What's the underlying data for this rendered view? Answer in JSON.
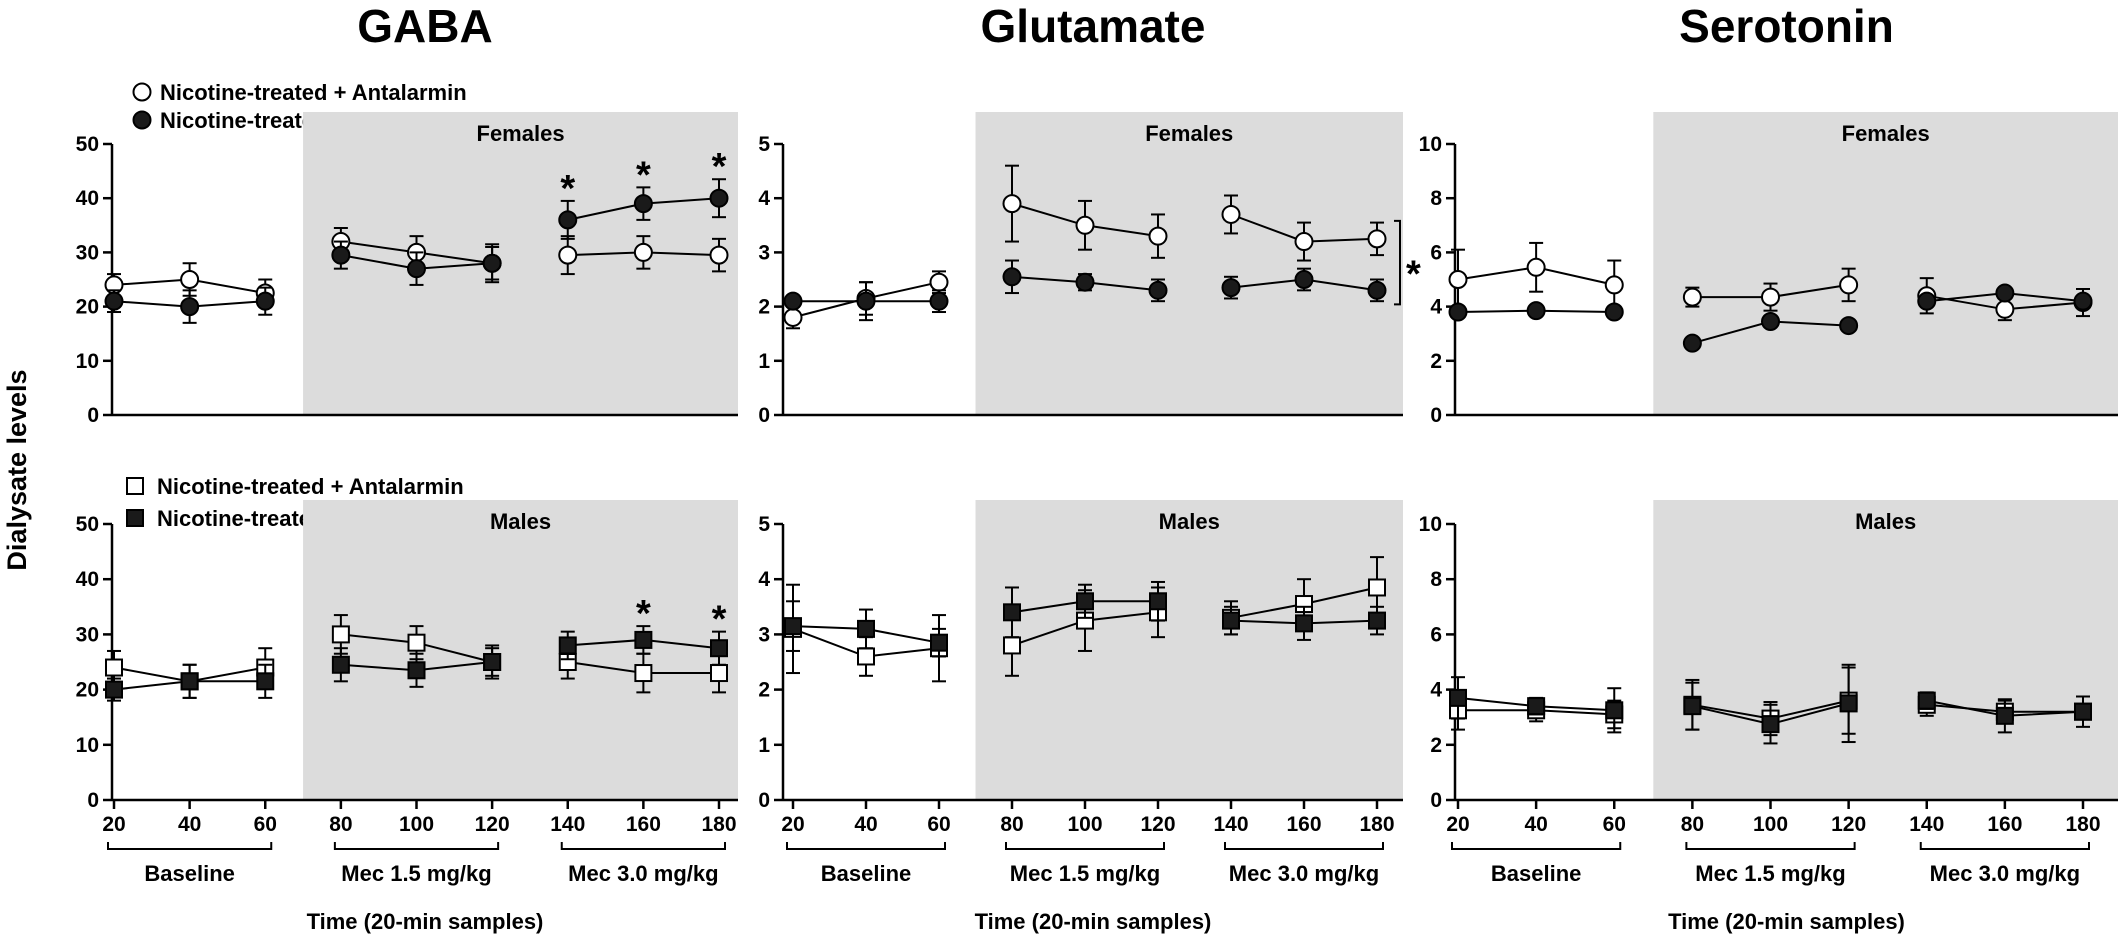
{
  "ylabel": "Dialysate levels",
  "legend_female": [
    "Nicotine-treated + Antalarmin",
    "Nicotine-treated"
  ],
  "legend_male": [
    "Nicotine-treated + Antalarmin",
    "Nicotine-treated"
  ],
  "colors": {
    "shade": "#dcdcdc",
    "filled": "#1a1a1a",
    "open": "#ffffff",
    "line": "#000000"
  },
  "chart_data": [
    {
      "type": "line",
      "title": "GABA",
      "panel_label": "Females",
      "xlabel": "Time (20-min samples)",
      "ylim": [
        0,
        50
      ],
      "yticks": [
        0,
        10,
        20,
        30,
        40,
        50
      ],
      "x": [
        20,
        40,
        60,
        80,
        100,
        120,
        140,
        160,
        180
      ],
      "groups": [
        "Baseline",
        "Mec 1.5 mg/kg",
        "Mec 3.0 mg/kg"
      ],
      "shaded_from_x": 70,
      "series": [
        {
          "name": "Nicotine-treated + Antalarmin",
          "marker": "circle-open",
          "values": [
            24,
            25,
            22.5,
            32,
            30,
            28,
            29.5,
            30,
            29.5
          ],
          "errors": [
            2,
            3,
            2.5,
            2.5,
            3,
            3.5,
            3.5,
            3,
            3
          ]
        },
        {
          "name": "Nicotine-treated",
          "marker": "circle-filled",
          "values": [
            21,
            20,
            21,
            29.5,
            27,
            28,
            36,
            39,
            40
          ],
          "errors": [
            2,
            3,
            2.5,
            2.5,
            3,
            3,
            3.5,
            3,
            3.5
          ]
        }
      ],
      "annotations": [
        {
          "text": "*",
          "x": 140
        },
        {
          "text": "*",
          "x": 160
        },
        {
          "text": "*",
          "x": 180
        }
      ]
    },
    {
      "type": "line",
      "title": "GABA",
      "panel_label": "Males",
      "xlabel": "Time (20-min samples)",
      "ylim": [
        0,
        50
      ],
      "yticks": [
        0,
        10,
        20,
        30,
        40,
        50
      ],
      "x": [
        20,
        40,
        60,
        80,
        100,
        120,
        140,
        160,
        180
      ],
      "groups": [
        "Baseline",
        "Mec 1.5 mg/kg",
        "Mec 3.0 mg/kg"
      ],
      "shaded_from_x": 70,
      "series": [
        {
          "name": "Nicotine-treated + Antalarmin",
          "marker": "square-open",
          "values": [
            24,
            21.5,
            24,
            30,
            28.5,
            25,
            25,
            23,
            23
          ],
          "errors": [
            3,
            3,
            3.5,
            3.5,
            3,
            2.5,
            3,
            3.5,
            3.5
          ]
        },
        {
          "name": "Nicotine-treated",
          "marker": "square-filled",
          "values": [
            20,
            21.5,
            21.5,
            24.5,
            23.5,
            25,
            28,
            29,
            27.5
          ],
          "errors": [
            2,
            3,
            3,
            3,
            3,
            3,
            2.5,
            2.5,
            3
          ]
        }
      ],
      "annotations": [
        {
          "text": "*",
          "x": 160
        },
        {
          "text": "*",
          "x": 180
        }
      ]
    },
    {
      "type": "line",
      "title": "Glutamate",
      "panel_label": "Females",
      "xlabel": "Time (20-min samples)",
      "ylim": [
        0,
        5
      ],
      "yticks": [
        0,
        1,
        2,
        3,
        4,
        5
      ],
      "x": [
        20,
        40,
        60,
        80,
        100,
        120,
        140,
        160,
        180
      ],
      "groups": [
        "Baseline"
      ],
      "shaded_from_x": 70,
      "series": [
        {
          "name": "Nicotine-treated + Antalarmin",
          "marker": "circle-open",
          "values": [
            1.8,
            2.15,
            2.45,
            3.9,
            3.5,
            3.3,
            3.7,
            3.2,
            3.25
          ],
          "errors": [
            0.2,
            0.3,
            0.2,
            0.7,
            0.45,
            0.4,
            0.35,
            0.35,
            0.3
          ]
        },
        {
          "name": "Nicotine-treated",
          "marker": "circle-filled",
          "values": [
            2.1,
            2.1,
            2.1,
            2.55,
            2.45,
            2.3,
            2.35,
            2.5,
            2.3
          ],
          "errors": [
            0.1,
            0.35,
            0.2,
            0.3,
            0.15,
            0.2,
            0.2,
            0.2,
            0.2
          ]
        }
      ],
      "annotations": [
        {
          "text": "*",
          "x": 180,
          "type": "bracket"
        }
      ]
    },
    {
      "type": "line",
      "title": "Glutamate",
      "panel_label": "Males",
      "xlabel": "Time (20-min samples)",
      "ylim": [
        0,
        5
      ],
      "yticks": [
        0,
        1,
        2,
        3,
        4,
        5
      ],
      "x": [
        20,
        40,
        60,
        80,
        100,
        120,
        140,
        160,
        180
      ],
      "groups": [
        "Baseline",
        "Mec 1.5 mg/kg",
        "Mec 3.0 mg/kg"
      ],
      "shaded_from_x": 70,
      "series": [
        {
          "name": "Nicotine-treated + Antalarmin",
          "marker": "square-open",
          "values": [
            3.1,
            2.6,
            2.75,
            2.8,
            3.25,
            3.4,
            3.3,
            3.55,
            3.85
          ],
          "errors": [
            0.8,
            0.35,
            0.6,
            0.55,
            0.55,
            0.45,
            0.3,
            0.45,
            0.55
          ]
        },
        {
          "name": "Nicotine-treated",
          "marker": "square-filled",
          "values": [
            3.15,
            3.1,
            2.85,
            3.4,
            3.6,
            3.6,
            3.25,
            3.2,
            3.25
          ],
          "errors": [
            0.45,
            0.35,
            0.25,
            0.45,
            0.3,
            0.35,
            0.25,
            0.3,
            0.25
          ]
        }
      ],
      "annotations": []
    },
    {
      "type": "line",
      "title": "Serotonin",
      "panel_label": "Females",
      "xlabel": "Time (20-min samples)",
      "ylim": [
        0,
        10
      ],
      "yticks": [
        0,
        2,
        4,
        6,
        8,
        10
      ],
      "x": [
        20,
        40,
        60,
        80,
        100,
        120,
        140,
        160,
        180
      ],
      "groups": [],
      "shaded_from_x": 70,
      "series": [
        {
          "name": "Nicotine-treated + Antalarmin",
          "marker": "circle-open",
          "values": [
            5,
            5.45,
            4.8,
            4.35,
            4.35,
            4.8,
            4.4,
            3.9,
            4.15
          ],
          "errors": [
            1.1,
            0.9,
            0.9,
            0.35,
            0.5,
            0.6,
            0.65,
            0.4,
            0.5
          ]
        },
        {
          "name": "Nicotine-treated",
          "marker": "circle-filled",
          "values": [
            3.8,
            3.85,
            3.8,
            2.65,
            3.45,
            3.3,
            4.2,
            4.5,
            4.2
          ]
        }
      ],
      "annotations": []
    },
    {
      "type": "line",
      "title": "Serotonin",
      "panel_label": "Males",
      "xlabel": "Time (20-min samples)",
      "ylim": [
        0,
        10
      ],
      "yticks": [
        0,
        2,
        4,
        6,
        8,
        10
      ],
      "x": [
        20,
        40,
        60,
        80,
        100,
        120,
        140,
        160,
        180
      ],
      "groups": [
        "Baseline",
        "Mec 1.5 mg/kg",
        "Mec 3.0 mg/kg"
      ],
      "shaded_from_x": 70,
      "series": [
        {
          "name": "Nicotine-treated + Antalarmin",
          "marker": "square-open",
          "values": [
            3.25,
            3.25,
            3.1,
            3.45,
            2.95,
            3.6,
            3.45,
            3.2,
            3.2
          ],
          "errors": [
            0.7,
            0.4,
            0.5,
            0.9,
            0.6,
            1.2,
            0.4,
            0.4,
            0.55
          ]
        },
        {
          "name": "Nicotine-treated",
          "marker": "square-filled",
          "values": [
            3.7,
            3.4,
            3.25,
            3.4,
            2.75,
            3.5,
            3.6,
            3.05,
            3.2
          ],
          "errors": [
            0.75,
            0.3,
            0.8,
            0.85,
            0.7,
            1.4,
            0.3,
            0.6,
            0.25
          ]
        }
      ],
      "annotations": []
    }
  ]
}
